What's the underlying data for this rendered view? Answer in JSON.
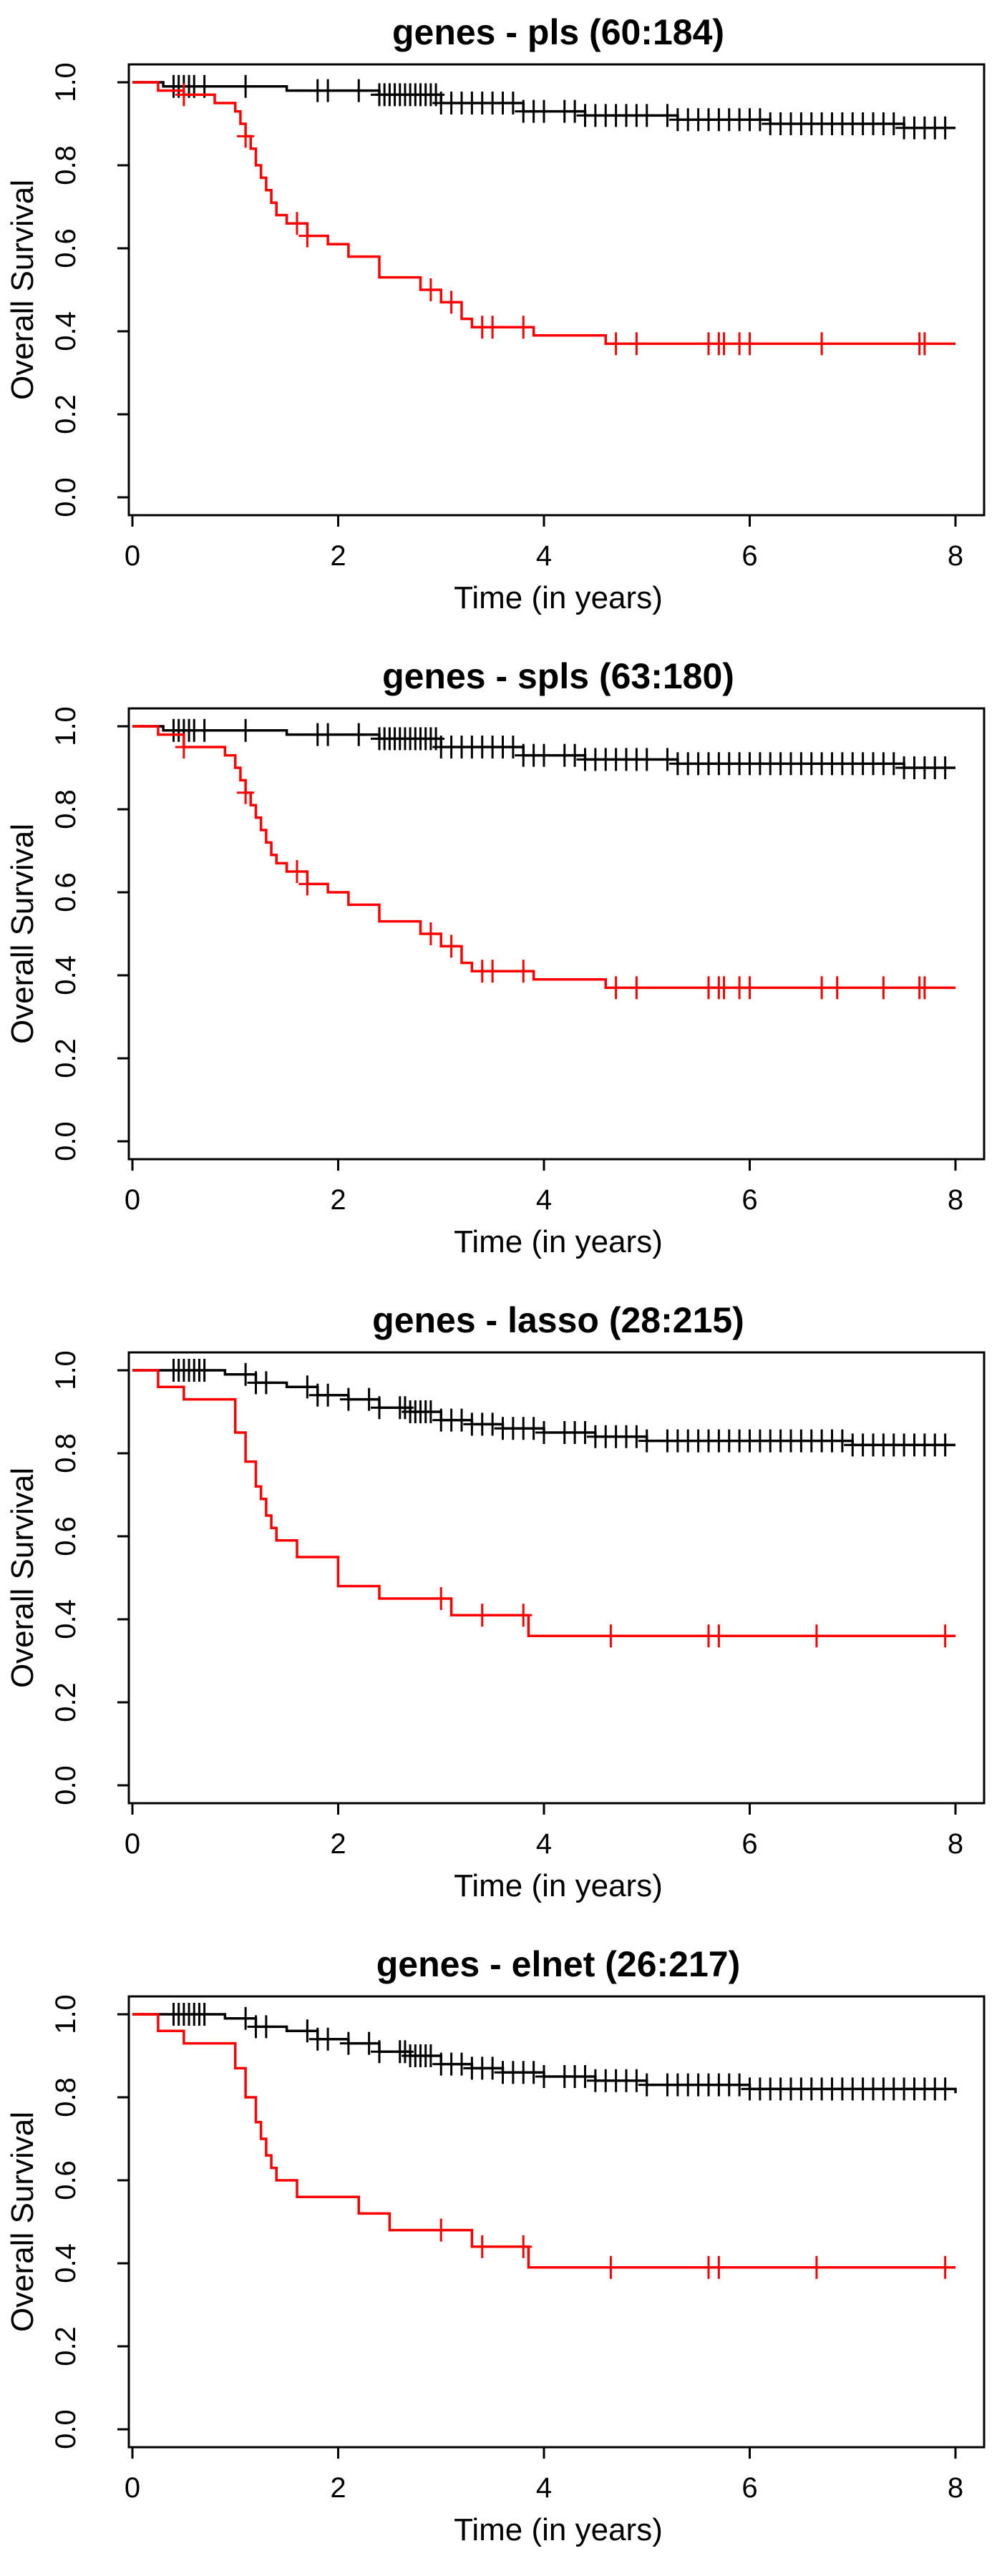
{
  "chart_data": [
    {
      "type": "line",
      "title": "genes - pls (60:184)",
      "xlabel": "Time (in years)",
      "ylabel": "Overall Survival",
      "xlim": [
        0,
        8
      ],
      "ylim": [
        0,
        1
      ],
      "xticks": [
        "0",
        "2",
        "4",
        "6",
        "8"
      ],
      "yticks": [
        "0.0",
        "0.2",
        "0.4",
        "0.6",
        "0.8",
        "1.0"
      ],
      "grid": false,
      "series": [
        {
          "color": "#000000",
          "x": [
            0,
            0.3,
            1.5,
            2.4,
            3.0,
            3.8,
            4.4,
            5.3,
            6.2,
            7.5,
            8.0
          ],
          "y": [
            1.0,
            0.99,
            0.98,
            0.97,
            0.95,
            0.93,
            0.92,
            0.91,
            0.9,
            0.89,
            0.89
          ],
          "censor_x": [
            0.4,
            0.45,
            0.5,
            0.55,
            0.6,
            0.7,
            1.1,
            1.8,
            1.9,
            2.2,
            2.4,
            2.45,
            2.5,
            2.55,
            2.6,
            2.65,
            2.7,
            2.75,
            2.8,
            2.85,
            2.9,
            2.95,
            3.0,
            3.1,
            3.2,
            3.3,
            3.4,
            3.5,
            3.6,
            3.7,
            3.8,
            3.9,
            4.0,
            4.2,
            4.3,
            4.4,
            4.5,
            4.6,
            4.7,
            4.8,
            4.9,
            5.0,
            5.2,
            5.3,
            5.4,
            5.5,
            5.6,
            5.7,
            5.8,
            5.9,
            6.0,
            6.1,
            6.2,
            6.3,
            6.4,
            6.5,
            6.6,
            6.7,
            6.8,
            6.9,
            7.0,
            7.1,
            7.2,
            7.3,
            7.4,
            7.5,
            7.6,
            7.7,
            7.8,
            7.9
          ]
        },
        {
          "color": "#ff0000",
          "x": [
            0,
            0.25,
            0.5,
            0.8,
            1.0,
            1.05,
            1.1,
            1.15,
            1.2,
            1.25,
            1.3,
            1.35,
            1.4,
            1.5,
            1.7,
            1.9,
            2.1,
            2.4,
            2.8,
            3.0,
            3.2,
            3.3,
            3.9,
            4.6,
            8.0
          ],
          "y": [
            1.0,
            0.98,
            0.97,
            0.95,
            0.93,
            0.9,
            0.87,
            0.84,
            0.8,
            0.77,
            0.74,
            0.71,
            0.68,
            0.66,
            0.63,
            0.61,
            0.58,
            0.53,
            0.5,
            0.47,
            0.43,
            0.41,
            0.39,
            0.37,
            0.37
          ],
          "censor_x": [
            0.5,
            1.1,
            1.6,
            1.7,
            2.9,
            3.1,
            3.4,
            3.5,
            3.8,
            4.7,
            4.9,
            5.6,
            5.7,
            5.75,
            5.9,
            6.0,
            6.7,
            7.65,
            7.7
          ]
        }
      ]
    },
    {
      "type": "line",
      "title": "genes - spls (63:180)",
      "xlabel": "Time (in years)",
      "ylabel": "Overall Survival",
      "xlim": [
        0,
        8
      ],
      "ylim": [
        0,
        1
      ],
      "xticks": [
        "0",
        "2",
        "4",
        "6",
        "8"
      ],
      "yticks": [
        "0.0",
        "0.2",
        "0.4",
        "0.6",
        "0.8",
        "1.0"
      ],
      "grid": false,
      "series": [
        {
          "color": "#000000",
          "x": [
            0,
            0.3,
            1.5,
            2.4,
            3.0,
            3.8,
            4.4,
            5.3,
            6.2,
            7.5,
            8.0
          ],
          "y": [
            1.0,
            0.99,
            0.98,
            0.97,
            0.95,
            0.93,
            0.92,
            0.91,
            0.91,
            0.9,
            0.9
          ],
          "censor_x": [
            0.4,
            0.45,
            0.5,
            0.55,
            0.6,
            0.7,
            1.1,
            1.8,
            1.9,
            2.2,
            2.4,
            2.45,
            2.5,
            2.55,
            2.6,
            2.65,
            2.7,
            2.75,
            2.8,
            2.85,
            2.9,
            2.95,
            3.0,
            3.1,
            3.2,
            3.3,
            3.4,
            3.5,
            3.6,
            3.7,
            3.8,
            3.9,
            4.0,
            4.2,
            4.3,
            4.4,
            4.5,
            4.6,
            4.7,
            4.8,
            4.9,
            5.0,
            5.2,
            5.3,
            5.4,
            5.5,
            5.6,
            5.7,
            5.8,
            5.9,
            6.0,
            6.1,
            6.2,
            6.3,
            6.4,
            6.5,
            6.6,
            6.7,
            6.8,
            6.9,
            7.0,
            7.1,
            7.2,
            7.3,
            7.4,
            7.5,
            7.6,
            7.7,
            7.8,
            7.9
          ]
        },
        {
          "color": "#ff0000",
          "x": [
            0,
            0.25,
            0.5,
            0.9,
            1.0,
            1.05,
            1.1,
            1.15,
            1.2,
            1.25,
            1.3,
            1.35,
            1.4,
            1.5,
            1.7,
            1.9,
            2.1,
            2.4,
            2.8,
            3.0,
            3.2,
            3.3,
            3.9,
            4.6,
            8.0
          ],
          "y": [
            1.0,
            0.98,
            0.95,
            0.93,
            0.9,
            0.87,
            0.84,
            0.81,
            0.78,
            0.75,
            0.72,
            0.69,
            0.67,
            0.65,
            0.62,
            0.6,
            0.57,
            0.53,
            0.5,
            0.47,
            0.43,
            0.41,
            0.39,
            0.37,
            0.37
          ],
          "censor_x": [
            0.5,
            1.1,
            1.6,
            1.7,
            2.9,
            3.1,
            3.4,
            3.5,
            3.8,
            4.7,
            4.9,
            5.6,
            5.7,
            5.75,
            5.9,
            6.0,
            6.7,
            6.85,
            7.3,
            7.65,
            7.7
          ]
        }
      ]
    },
    {
      "type": "line",
      "title": "genes - lasso (28:215)",
      "xlabel": "Time (in years)",
      "ylabel": "Overall Survival",
      "xlim": [
        0,
        8
      ],
      "ylim": [
        0,
        1
      ],
      "xticks": [
        "0",
        "2",
        "4",
        "6",
        "8"
      ],
      "yticks": [
        "0.0",
        "0.2",
        "0.4",
        "0.6",
        "0.8",
        "1.0"
      ],
      "grid": false,
      "series": [
        {
          "color": "#000000",
          "x": [
            0,
            0.9,
            1.2,
            1.5,
            1.8,
            2.1,
            2.4,
            2.7,
            3.0,
            3.3,
            3.6,
            4.0,
            4.5,
            5.0,
            6.0,
            7.0,
            8.0
          ],
          "y": [
            1.0,
            0.99,
            0.97,
            0.96,
            0.94,
            0.93,
            0.91,
            0.9,
            0.88,
            0.87,
            0.86,
            0.85,
            0.84,
            0.83,
            0.83,
            0.82,
            0.82
          ],
          "censor_x": [
            0.4,
            0.45,
            0.5,
            0.55,
            0.6,
            0.65,
            0.7,
            1.1,
            1.2,
            1.3,
            1.7,
            1.8,
            1.9,
            2.1,
            2.3,
            2.4,
            2.6,
            2.65,
            2.7,
            2.75,
            2.8,
            2.85,
            2.9,
            3.0,
            3.1,
            3.2,
            3.3,
            3.4,
            3.5,
            3.6,
            3.7,
            3.8,
            3.9,
            4.0,
            4.2,
            4.3,
            4.4,
            4.5,
            4.6,
            4.7,
            4.8,
            4.9,
            5.0,
            5.2,
            5.3,
            5.4,
            5.5,
            5.6,
            5.7,
            5.8,
            5.9,
            6.0,
            6.1,
            6.2,
            6.3,
            6.4,
            6.5,
            6.6,
            6.7,
            6.8,
            6.9,
            7.0,
            7.1,
            7.2,
            7.3,
            7.4,
            7.5,
            7.6,
            7.7,
            7.8,
            7.9
          ]
        },
        {
          "color": "#ff0000",
          "x": [
            0,
            0.25,
            0.5,
            1.0,
            1.1,
            1.2,
            1.25,
            1.3,
            1.35,
            1.4,
            1.6,
            2.0,
            2.4,
            3.1,
            3.85,
            8.0
          ],
          "y": [
            1.0,
            0.96,
            0.93,
            0.85,
            0.78,
            0.72,
            0.69,
            0.65,
            0.62,
            0.59,
            0.55,
            0.48,
            0.45,
            0.41,
            0.36,
            0.36
          ],
          "censor_x": [
            3.0,
            3.4,
            3.8,
            4.65,
            5.6,
            5.7,
            6.65,
            7.9
          ]
        }
      ]
    },
    {
      "type": "line",
      "title": "genes - elnet (26:217)",
      "xlabel": "Time (in years)",
      "ylabel": "Overall Survival",
      "xlim": [
        0,
        8
      ],
      "ylim": [
        0,
        1
      ],
      "xticks": [
        "0",
        "2",
        "4",
        "6",
        "8"
      ],
      "yticks": [
        "0.0",
        "0.2",
        "0.4",
        "0.6",
        "0.8",
        "1.0"
      ],
      "grid": false,
      "series": [
        {
          "color": "#000000",
          "x": [
            0,
            0.9,
            1.2,
            1.5,
            1.8,
            2.1,
            2.4,
            2.7,
            3.0,
            3.3,
            3.6,
            4.0,
            4.5,
            5.0,
            6.0,
            7.0,
            8.0
          ],
          "y": [
            1.0,
            0.99,
            0.97,
            0.96,
            0.94,
            0.93,
            0.91,
            0.9,
            0.88,
            0.87,
            0.86,
            0.85,
            0.84,
            0.83,
            0.82,
            0.82,
            0.81
          ],
          "censor_x": [
            0.4,
            0.45,
            0.5,
            0.55,
            0.6,
            0.65,
            0.7,
            1.1,
            1.2,
            1.3,
            1.7,
            1.8,
            1.9,
            2.1,
            2.3,
            2.4,
            2.6,
            2.65,
            2.7,
            2.75,
            2.8,
            2.85,
            2.9,
            3.0,
            3.1,
            3.2,
            3.3,
            3.4,
            3.5,
            3.6,
            3.7,
            3.8,
            3.9,
            4.0,
            4.2,
            4.3,
            4.4,
            4.5,
            4.6,
            4.7,
            4.8,
            4.9,
            5.0,
            5.2,
            5.3,
            5.4,
            5.5,
            5.6,
            5.7,
            5.8,
            5.9,
            6.0,
            6.1,
            6.2,
            6.3,
            6.4,
            6.5,
            6.6,
            6.7,
            6.8,
            6.9,
            7.0,
            7.1,
            7.2,
            7.3,
            7.4,
            7.5,
            7.6,
            7.7,
            7.8,
            7.9
          ]
        },
        {
          "color": "#ff0000",
          "x": [
            0,
            0.25,
            0.5,
            1.0,
            1.1,
            1.2,
            1.25,
            1.3,
            1.35,
            1.4,
            1.6,
            2.2,
            2.5,
            3.3,
            3.85,
            8.0
          ],
          "y": [
            1.0,
            0.96,
            0.93,
            0.87,
            0.8,
            0.74,
            0.7,
            0.66,
            0.63,
            0.6,
            0.56,
            0.52,
            0.48,
            0.44,
            0.39,
            0.39
          ],
          "censor_x": [
            3.0,
            3.4,
            3.8,
            4.65,
            5.6,
            5.7,
            6.65,
            7.9
          ]
        }
      ]
    }
  ]
}
